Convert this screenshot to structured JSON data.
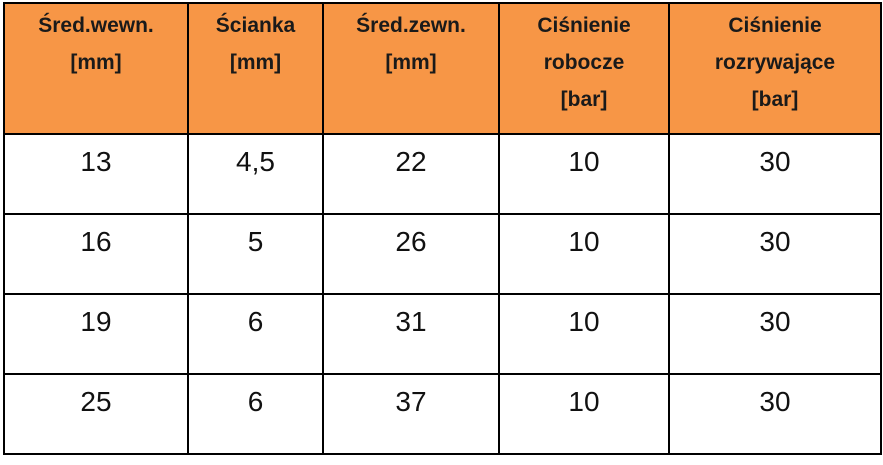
{
  "table": {
    "header": [
      [
        "Śred.wewn.",
        "[mm]"
      ],
      [
        "Ścianka",
        "[mm]"
      ],
      [
        "Śred.zewn.",
        "[mm]"
      ],
      [
        "Ciśnienie",
        "robocze",
        "[bar]"
      ],
      [
        "Ciśnienie",
        "rozrywające",
        "[bar]"
      ]
    ],
    "rows": [
      [
        "13",
        "4,5",
        "22",
        "10",
        "30"
      ],
      [
        "16",
        "5",
        "26",
        "10",
        "30"
      ],
      [
        "19",
        "6",
        "31",
        "10",
        "30"
      ],
      [
        "25",
        "6",
        "37",
        "10",
        "30"
      ]
    ]
  }
}
